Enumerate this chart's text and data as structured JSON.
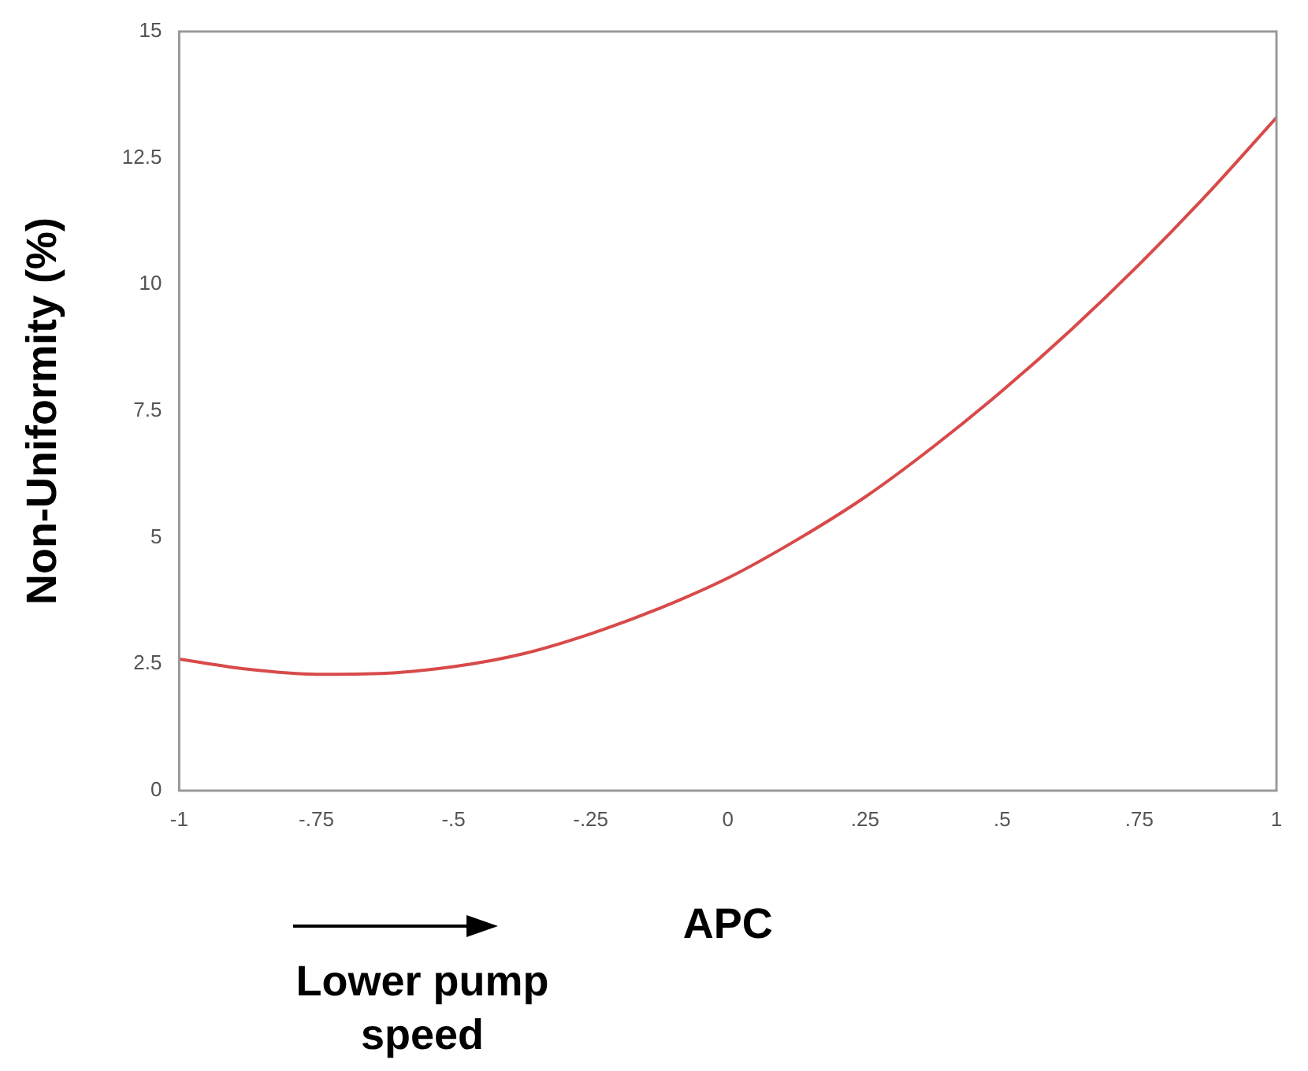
{
  "chart_data": {
    "type": "line",
    "xlabel": "APC",
    "ylabel": "Non-Uniformity (%)",
    "annotations": [
      "Lower pump speed"
    ],
    "x": [
      -1,
      -0.875,
      -0.75,
      -0.625,
      -0.5,
      -0.375,
      -0.25,
      -0.125,
      0,
      0.125,
      0.25,
      0.375,
      0.5,
      0.625,
      0.75,
      0.875,
      1
    ],
    "series": [
      {
        "color": "#d84a4a",
        "values": [
          2.6,
          2.4,
          2.3,
          2.32,
          2.45,
          2.7,
          3.1,
          3.6,
          4.2,
          4.95,
          5.8,
          6.8,
          7.9,
          9.1,
          10.4,
          11.8,
          13.3
        ]
      }
    ],
    "xlim": [
      -1,
      1
    ],
    "xticks": [
      -1,
      {
        "value": -0.75,
        "label": "-.75"
      },
      {
        "value": -0.5,
        "label": "-.5"
      },
      {
        "value": -0.25,
        "label": "-.25"
      },
      0,
      {
        "value": 0.25,
        "label": ".25"
      },
      {
        "value": 0.5,
        "label": ".5"
      },
      {
        "value": 0.75,
        "label": ".75"
      },
      1
    ],
    "ylim": [
      0,
      15
    ],
    "yticks": [
      0,
      2.5,
      5,
      7.5,
      10,
      12.5,
      15
    ],
    "grid": false,
    "legend": false,
    "marker": "none",
    "line_style": "solid"
  }
}
